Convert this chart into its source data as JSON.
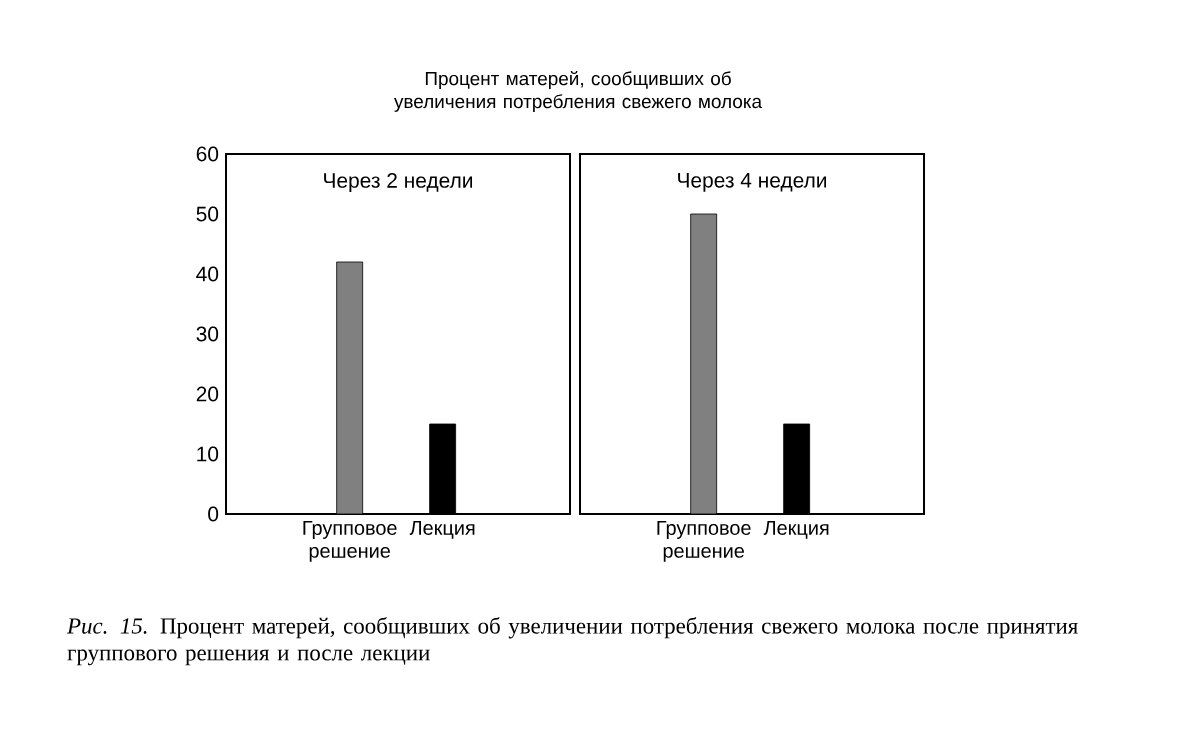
{
  "chart_data": [
    {
      "type": "bar",
      "title": "Процент матерей, сообщивших об увеличения потребления свежего молока",
      "categories": [
        "Групповое решение",
        "Лекция"
      ],
      "values": [
        42,
        15
      ],
      "colors": [
        "#808080",
        "#000000"
      ],
      "ylim": [
        0,
        60
      ],
      "yticks": [
        0,
        10,
        20,
        30,
        40,
        50,
        60
      ],
      "annotations": [
        "Через 2 недели",
        "*Рис. 15.* Процент матерей, сообщивших об увеличении потребления свежего молока после принятия группового решения и после лекции"
      ]
    },
    {
      "type": "bar",
      "categories": [
        "Групповое решение",
        "Лекция"
      ],
      "values": [
        50,
        15
      ],
      "colors": [
        "#808080",
        "#000000"
      ],
      "ylim": [
        0,
        60
      ],
      "yticks": [
        0,
        10,
        20,
        30,
        40,
        50,
        60
      ],
      "tick_labels": "x",
      "annotations": [
        "Через 4 недели"
      ]
    }
  ]
}
